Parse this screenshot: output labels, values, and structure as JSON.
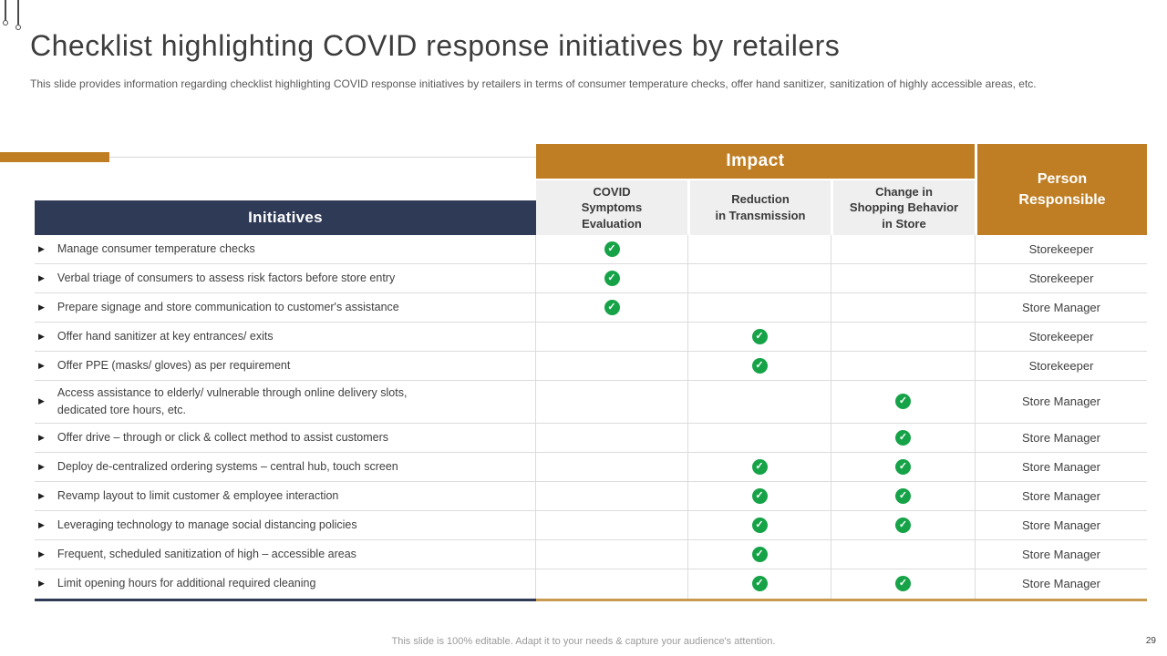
{
  "slide": {
    "title": "Checklist highlighting COVID response initiatives by retailers",
    "subtitle": "This slide provides information regarding checklist highlighting COVID response initiatives by retailers in terms of consumer temperature checks, offer hand sanitizer, sanitization of highly accessible areas, etc.",
    "footer": "This slide is 100% editable.  Adapt it to your needs & capture your audience's attention.",
    "page_number": "29"
  },
  "colors": {
    "accent_orange": "#bf7e23",
    "header_navy": "#2f3a56",
    "check_green": "#16a348",
    "subheader_gray": "#efefef",
    "bottom_border_tan": "#c79a4d"
  },
  "table": {
    "impact_header": "Impact",
    "person_header": "Person\nResponsible",
    "initiatives_header": "Initiatives",
    "bullet_glyph": "▶",
    "impact_columns": [
      "COVID\nSymptoms\nEvaluation",
      "Reduction\nin Transmission",
      "Change in\nShopping Behavior\nin Store"
    ],
    "rows": [
      {
        "initiative": "Manage consumer temperature  checks",
        "impact": [
          "✓",
          "",
          ""
        ],
        "person": "Storekeeper"
      },
      {
        "initiative": "Verbal triage of consumers to assess risk factors  before  store entry",
        "impact": [
          "✓",
          "",
          ""
        ],
        "person": "Storekeeper"
      },
      {
        "initiative": "Prepare  signage  and store  communication to customer's assistance",
        "impact": [
          "✓",
          "",
          ""
        ],
        "person": "Store Manager"
      },
      {
        "initiative": "Offer  hand  sanitizer at key entrances/  exits",
        "impact": [
          "",
          "✓",
          ""
        ],
        "person": "Storekeeper"
      },
      {
        "initiative": "Offer  PPE (masks/  gloves)  as per requirement",
        "impact": [
          "",
          "✓",
          ""
        ],
        "person": "Storekeeper"
      },
      {
        "initiative": "Access assistance to elderly/ vulnerable  through  online  delivery  slots,\ndedicated  tore  hours,  etc.",
        "impact": [
          "",
          "",
          "✓"
        ],
        "person": "Store Manager"
      },
      {
        "initiative": "Offer  drive  – through  or  click & collect method  to assist customers",
        "impact": [
          "",
          "",
          "✓"
        ],
        "person": "Store Manager"
      },
      {
        "initiative": "Deploy  de-centralized  ordering  systems – central  hub,  touch  screen",
        "impact": [
          "",
          "✓",
          "✓"
        ],
        "person": "Store Manager"
      },
      {
        "initiative": "Revamp  layout to limit customer  & employee  interaction",
        "impact": [
          "",
          "✓",
          "✓"
        ],
        "person": "Store Manager"
      },
      {
        "initiative": "Leveraging  technology  to manage  social  distancing  policies",
        "impact": [
          "",
          "✓",
          "✓"
        ],
        "person": "Store Manager"
      },
      {
        "initiative": "Frequent,  scheduled  sanitization  of high – accessible  areas",
        "impact": [
          "",
          "✓",
          ""
        ],
        "person": "Store Manager"
      },
      {
        "initiative": "Limit opening  hours  for  additional  required  cleaning",
        "impact": [
          "",
          "✓",
          "✓"
        ],
        "person": "Store Manager"
      }
    ]
  }
}
